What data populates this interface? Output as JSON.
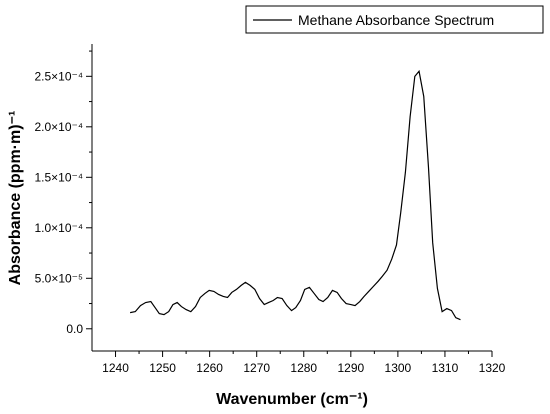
{
  "chart_data": {
    "type": "line",
    "xlabel": "Wavenumber (cm⁻¹)",
    "ylabel": "Absorbance (ppm·m)⁻¹",
    "xlim": [
      1235,
      1320
    ],
    "ylim": [
      -2.2e-05,
      0.000282
    ],
    "x_ticks": [
      1240,
      1250,
      1260,
      1270,
      1280,
      1290,
      1300,
      1310,
      1320
    ],
    "x_tick_labels": [
      "1240",
      "1250",
      "1260",
      "1270",
      "1280",
      "1290",
      "1300",
      "1310",
      "1320"
    ],
    "y_ticks": [
      0,
      5e-05,
      0.0001,
      0.00015,
      0.0002,
      0.00025
    ],
    "y_tick_labels": [
      "0.0",
      "5.0×10⁻⁵",
      "1.0×10⁻⁴",
      "1.5×10⁻⁴",
      "2.0×10⁻⁴",
      "2.5×10⁻⁴"
    ],
    "legend_position": "top-right",
    "series": [
      {
        "name": "Methane Absorbance Spectrum",
        "color": "#000000",
        "x": [
          1243.1,
          1244.2,
          1245.3,
          1246.4,
          1247.5,
          1248.4,
          1249.3,
          1250.3,
          1251.3,
          1252.2,
          1253.1,
          1254.0,
          1255.0,
          1256.0,
          1257.0,
          1258.0,
          1259.0,
          1259.9,
          1260.9,
          1261.9,
          1262.9,
          1263.8,
          1264.7,
          1265.7,
          1266.7,
          1267.6,
          1268.6,
          1269.6,
          1270.6,
          1271.6,
          1272.5,
          1273.5,
          1274.4,
          1275.4,
          1276.4,
          1277.4,
          1278.3,
          1279.3,
          1280.2,
          1281.2,
          1282.2,
          1283.2,
          1284.1,
          1285.1,
          1286.1,
          1287.1,
          1288.0,
          1289.0,
          1290.0,
          1290.9,
          1291.9,
          1292.8,
          1293.8,
          1294.8,
          1295.8,
          1296.7,
          1297.7,
          1298.7,
          1299.7,
          1300.6,
          1301.6,
          1302.6,
          1303.6,
          1304.5,
          1305.5,
          1306.5,
          1307.4,
          1308.4,
          1309.4,
          1310.4,
          1311.4,
          1312.3,
          1313.3
        ],
        "y": [
          1.6e-05,
          1.7e-05,
          2.3e-05,
          2.6e-05,
          2.7e-05,
          2.1e-05,
          1.5e-05,
          1.4e-05,
          1.7e-05,
          2.4e-05,
          2.6e-05,
          2.2e-05,
          1.9e-05,
          1.7e-05,
          2.2e-05,
          3.1e-05,
          3.5e-05,
          3.8e-05,
          3.7e-05,
          3.4e-05,
          3.2e-05,
          3.1e-05,
          3.6e-05,
          3.9e-05,
          4.3e-05,
          4.6e-05,
          4.3e-05,
          3.9e-05,
          3e-05,
          2.4e-05,
          2.6e-05,
          2.8e-05,
          3.1e-05,
          3e-05,
          2.3e-05,
          1.8e-05,
          2.1e-05,
          2.8e-05,
          3.9e-05,
          4.1e-05,
          3.5e-05,
          2.9e-05,
          2.7e-05,
          3.1e-05,
          3.8e-05,
          3.6e-05,
          3e-05,
          2.5e-05,
          2.4e-05,
          2.3e-05,
          2.7e-05,
          3.2e-05,
          3.7e-05,
          4.2e-05,
          4.7e-05,
          5.2e-05,
          5.8e-05,
          6.9e-05,
          8.3e-05,
          0.000115,
          0.000155,
          0.00021,
          0.00025,
          0.000255,
          0.00023,
          0.00016,
          8.5e-05,
          4e-05,
          1.7e-05,
          2e-05,
          1.8e-05,
          1.1e-05,
          9e-06
        ]
      }
    ]
  }
}
